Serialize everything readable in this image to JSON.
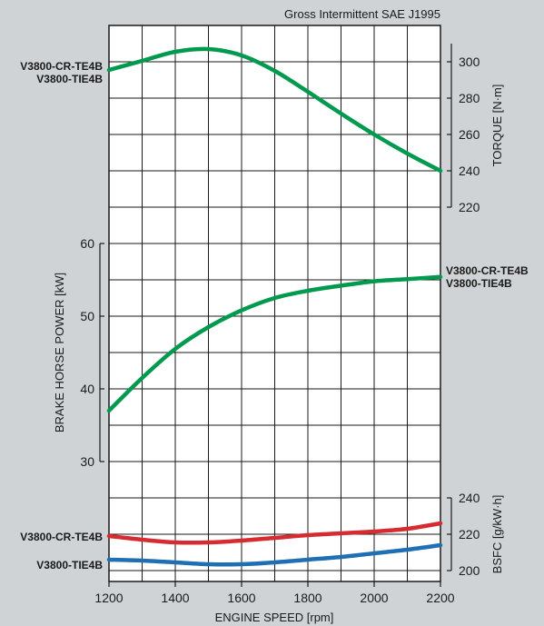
{
  "chart_data": {
    "type": "line",
    "note_top": "Gross Intermittent SAE J1995",
    "xlabel": "ENGINE SPEED [rpm]",
    "x_ticks": [
      1200,
      1400,
      1600,
      1800,
      2000,
      2200
    ],
    "xlim": [
      1200,
      2200
    ],
    "panels": [
      {
        "id": "torque",
        "axis_side": "right",
        "ylabel": "TORQUE [N·m]",
        "ylim": [
          220,
          300
        ],
        "y_ticks": [
          220,
          240,
          260,
          280,
          300
        ],
        "label_side": "left",
        "curve_labels": [
          "V3800-CR-TE4B",
          "V3800-TIE4B"
        ],
        "series": [
          {
            "color": "#009a4e",
            "x": [
              1200,
              1300,
              1400,
              1500,
              1600,
              1700,
              1800,
              1900,
              2000,
              2100,
              2200
            ],
            "y": [
              295.5,
              300.5,
              305.5,
              307.0,
              303.5,
              295.0,
              283.5,
              271.5,
              260.0,
              249.5,
              240.0
            ]
          }
        ]
      },
      {
        "id": "power",
        "axis_side": "left",
        "ylabel": "BRAKE HORSE POWER [kW]",
        "ylim": [
          30,
          60
        ],
        "y_ticks": [
          30,
          40,
          50,
          60
        ],
        "label_side": "right",
        "curve_labels": [
          "V3800-CR-TE4B",
          "V3800-TIE4B"
        ],
        "series": [
          {
            "color": "#009a4e",
            "x": [
              1200,
              1300,
              1400,
              1500,
              1600,
              1700,
              1800,
              1900,
              2000,
              2100,
              2200
            ],
            "y": [
              37.0,
              41.5,
              45.5,
              48.5,
              50.8,
              52.5,
              53.5,
              54.2,
              54.8,
              55.1,
              55.4
            ]
          }
        ]
      },
      {
        "id": "bsfc",
        "axis_side": "right",
        "ylabel": "BSFC [g/kW·h]",
        "ylim": [
          200,
          240
        ],
        "y_ticks": [
          200,
          220,
          240
        ],
        "label_side": "left",
        "series": [
          {
            "name": "V3800-CR-TE4B",
            "color": "#d62b30",
            "x": [
              1200,
              1300,
              1400,
              1500,
              1600,
              1700,
              1800,
              1900,
              2000,
              2100,
              2200
            ],
            "y": [
              219.0,
              217.0,
              215.5,
              215.5,
              216.5,
              218.0,
              219.5,
              220.5,
              221.5,
              223.0,
              226.0
            ]
          },
          {
            "name": "V3800-TIE4B",
            "color": "#1f6fb5",
            "x": [
              1200,
              1300,
              1400,
              1500,
              1600,
              1700,
              1800,
              1900,
              2000,
              2100,
              2200
            ],
            "y": [
              206.0,
              205.5,
              204.5,
              203.5,
              203.5,
              204.5,
              206.0,
              207.5,
              209.5,
              211.5,
              214.0
            ]
          }
        ]
      }
    ],
    "grid": true
  }
}
